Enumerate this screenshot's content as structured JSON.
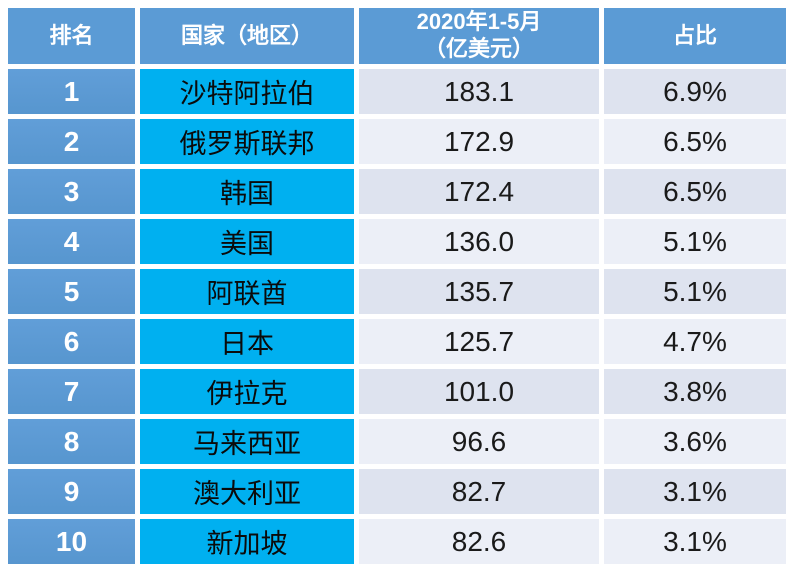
{
  "table": {
    "headers": {
      "rank": "排名",
      "country": "国家（地区）",
      "value_line1": "2020年1-5月",
      "value_line2": "（亿美元）",
      "share": "占比"
    },
    "rows": [
      {
        "rank": "1",
        "country": "沙特阿拉伯",
        "value": "183.1",
        "share": "6.9%"
      },
      {
        "rank": "2",
        "country": "俄罗斯联邦",
        "value": "172.9",
        "share": "6.5%"
      },
      {
        "rank": "3",
        "country": "韩国",
        "value": "172.4",
        "share": "6.5%"
      },
      {
        "rank": "4",
        "country": "美国",
        "value": "136.0",
        "share": "5.1%"
      },
      {
        "rank": "5",
        "country": "阿联酋",
        "value": "135.7",
        "share": "5.1%"
      },
      {
        "rank": "6",
        "country": "日本",
        "value": "125.7",
        "share": "4.7%"
      },
      {
        "rank": "7",
        "country": "伊拉克",
        "value": "101.0",
        "share": "3.8%"
      },
      {
        "rank": "8",
        "country": "马来西亚",
        "value": "96.6",
        "share": "3.6%"
      },
      {
        "rank": "9",
        "country": "澳大利亚",
        "value": "82.7",
        "share": "3.1%"
      },
      {
        "rank": "10",
        "country": "新加坡",
        "value": "82.6",
        "share": "3.1%"
      }
    ]
  },
  "colors": {
    "header_blue": "#5B9BD5",
    "rank_blue": "#5B9BD5",
    "country_cyan": "#00B0F0",
    "band_dark": "#DEE3EF",
    "band_light": "#ECEFF7",
    "grid_gap": "#FFFFFF",
    "header_text": "#FFFFFF",
    "body_text": "#1A1A1A"
  },
  "chart_data": {
    "type": "table",
    "columns": [
      "排名",
      "国家（地区）",
      "2020年1-5月（亿美元）",
      "占比"
    ],
    "rows": [
      [
        1,
        "沙特阿拉伯",
        183.1,
        "6.9%"
      ],
      [
        2,
        "俄罗斯联邦",
        172.9,
        "6.5%"
      ],
      [
        3,
        "韩国",
        172.4,
        "6.5%"
      ],
      [
        4,
        "美国",
        136.0,
        "5.1%"
      ],
      [
        5,
        "阿联酋",
        135.7,
        "5.1%"
      ],
      [
        6,
        "日本",
        125.7,
        "4.7%"
      ],
      [
        7,
        "伊拉克",
        101.0,
        "3.8%"
      ],
      [
        8,
        "马来西亚",
        96.6,
        "3.6%"
      ],
      [
        9,
        "澳大利亚",
        82.7,
        "3.1%"
      ],
      [
        10,
        "新加坡",
        82.6,
        "3.1%"
      ]
    ]
  }
}
